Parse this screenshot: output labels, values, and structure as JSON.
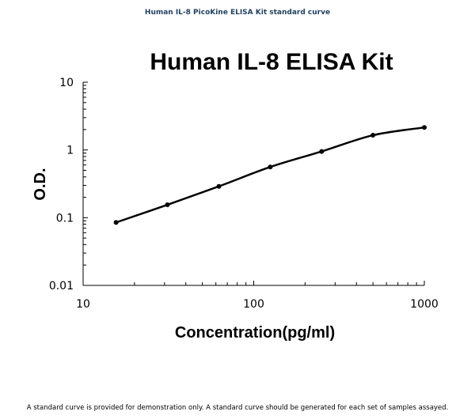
{
  "header": {
    "caption": "Human IL-8 PicoKine ELISA Kit standard curve"
  },
  "footer": {
    "note": "A standard curve is provided for demonstration only. A standard curve should be generated for each set of samples assayed."
  },
  "chart_data": {
    "type": "line",
    "title": "Human IL-8 ELISA Kit",
    "xlabel": "Concentration(pg/ml)",
    "ylabel": "O.D.",
    "xscale": "log",
    "yscale": "log",
    "xlim": [
      10,
      1000
    ],
    "ylim": [
      0.01,
      10
    ],
    "x_ticks": [
      10,
      100,
      1000
    ],
    "y_ticks": [
      0.01,
      0.1,
      1,
      10
    ],
    "x_tick_labels": [
      "10",
      "100",
      "1000"
    ],
    "y_tick_labels": [
      "0.01",
      "0.1",
      "1",
      "10"
    ],
    "grid": false,
    "series": [
      {
        "x": [
          15.6,
          31.2,
          62.5,
          125,
          250,
          500,
          1000
        ],
        "y": [
          0.085,
          0.155,
          0.29,
          0.56,
          0.95,
          1.65,
          2.15
        ]
      }
    ],
    "line_color": "#000000"
  }
}
